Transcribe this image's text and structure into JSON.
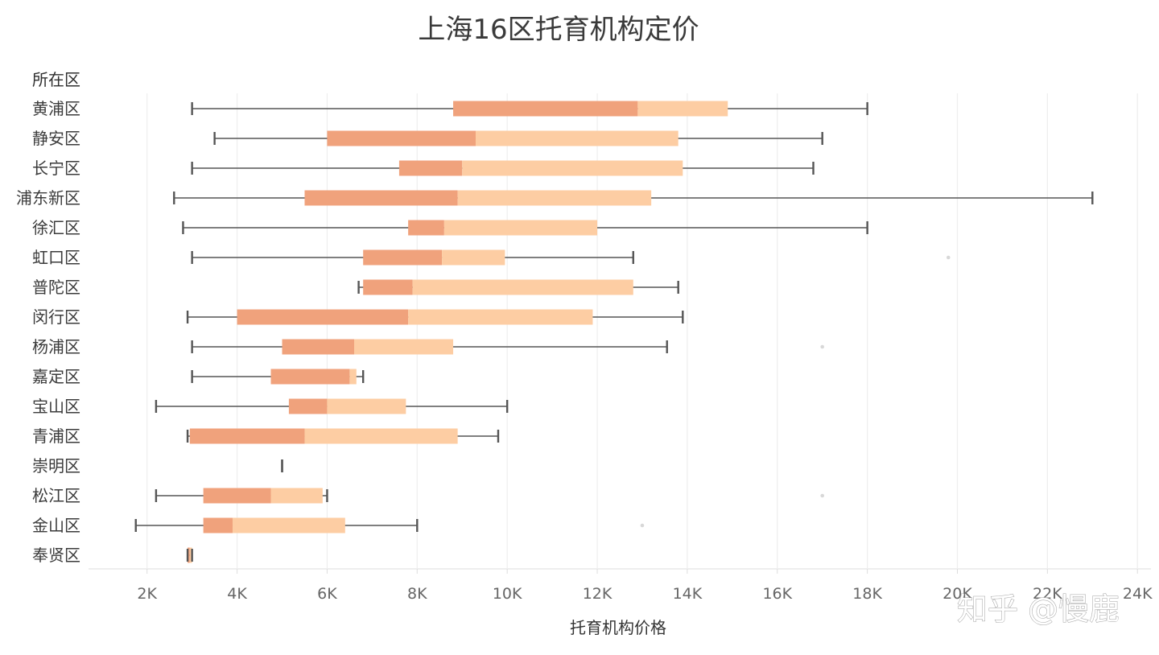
{
  "chart_data": {
    "type": "boxplot",
    "title": "上海16区托育机构定价",
    "y_header": "所在区",
    "xlabel": "托育机构价格",
    "xlim": [
      700,
      24300
    ],
    "x_ticks": [
      2000,
      4000,
      6000,
      8000,
      10000,
      12000,
      14000,
      16000,
      18000,
      20000,
      22000,
      24000
    ],
    "x_tick_labels": [
      "2K",
      "4K",
      "6K",
      "8K",
      "10K",
      "12K",
      "14K",
      "16K",
      "18K",
      "20K",
      "22K",
      "24K"
    ],
    "grid": "vertical",
    "colors": {
      "lower_box": "#f0a27c",
      "upper_box": "#fdcda3",
      "whisker": "#555555",
      "grid": "#eeeeee",
      "outlier": "#d8d8d8"
    },
    "categories": [
      "黄浦区",
      "静安区",
      "长宁区",
      "浦东新区",
      "徐汇区",
      "虹口区",
      "普陀区",
      "闵行区",
      "杨浦区",
      "嘉定区",
      "宝山区",
      "青浦区",
      "崇明区",
      "松江区",
      "金山区",
      "奉贤区"
    ],
    "boxes": [
      {
        "min": 3000,
        "q1": 8800,
        "median": 12900,
        "q3": 14900,
        "max": 18000
      },
      {
        "min": 3500,
        "q1": 6000,
        "median": 9300,
        "q3": 13800,
        "max": 17000
      },
      {
        "min": 3000,
        "q1": 7600,
        "median": 9000,
        "q3": 13900,
        "max": 16800
      },
      {
        "min": 2600,
        "q1": 5500,
        "median": 8900,
        "q3": 13200,
        "max": 23000
      },
      {
        "min": 2800,
        "q1": 7800,
        "median": 8600,
        "q3": 12000,
        "max": 18000
      },
      {
        "min": 3000,
        "q1": 6800,
        "median": 8550,
        "q3": 9950,
        "max": 12800
      },
      {
        "min": 6700,
        "q1": 6800,
        "median": 7900,
        "q3": 12800,
        "max": 13800
      },
      {
        "min": 2900,
        "q1": 4000,
        "median": 7800,
        "q3": 11900,
        "max": 13900
      },
      {
        "min": 3000,
        "q1": 5000,
        "median": 6600,
        "q3": 8800,
        "max": 13550
      },
      {
        "min": 3000,
        "q1": 4750,
        "median": 6500,
        "q3": 6650,
        "max": 6800
      },
      {
        "min": 2200,
        "q1": 5150,
        "median": 6000,
        "q3": 7750,
        "max": 10000
      },
      {
        "min": 2900,
        "q1": 2950,
        "median": 5500,
        "q3": 8900,
        "max": 9800
      },
      {
        "min": 5000,
        "q1": 5000,
        "median": 5000,
        "q3": 5000,
        "max": 5000
      },
      {
        "min": 2200,
        "q1": 3250,
        "median": 4750,
        "q3": 5900,
        "max": 6000
      },
      {
        "min": 1750,
        "q1": 3250,
        "median": 3900,
        "q3": 6400,
        "max": 8000
      },
      {
        "min": 2900,
        "q1": 2900,
        "median": 2950,
        "q3": 3000,
        "max": 3000
      }
    ],
    "outliers": [
      {
        "category": "虹口区",
        "value": 19800
      },
      {
        "category": "杨浦区",
        "value": 17000
      },
      {
        "category": "松江区",
        "value": 17000
      },
      {
        "category": "金山区",
        "value": 13000
      }
    ]
  },
  "watermark": {
    "text": "知乎 @慢鹿"
  }
}
